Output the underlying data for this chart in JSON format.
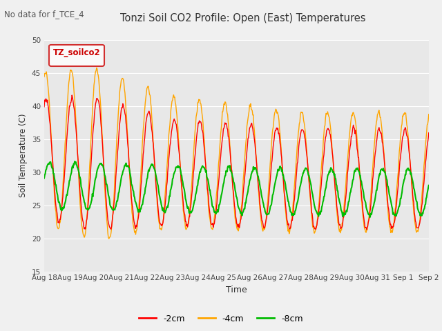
{
  "title": "Tonzi Soil CO2 Profile: Open (East) Temperatures",
  "subtitle": "No data for f_TCE_4",
  "ylabel": "Soil Temperature (C)",
  "xlabel": "Time",
  "legend_label": "TZ_soilco2",
  "series_labels": [
    "-2cm",
    "-4cm",
    "-8cm"
  ],
  "series_colors": [
    "#ff0000",
    "#ffa500",
    "#00bb00"
  ],
  "ylim": [
    15,
    50
  ],
  "fig_facecolor": "#f0f0f0",
  "plot_facecolor": "#e8e8e8",
  "n_days": 15,
  "start_day": 18,
  "freq_per_day": 48,
  "yticks": [
    15,
    20,
    25,
    30,
    35,
    40,
    45,
    50
  ]
}
